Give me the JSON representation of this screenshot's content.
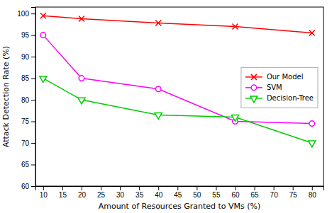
{
  "chart_data": {
    "type": "line",
    "x": [
      10,
      20,
      40,
      60,
      80
    ],
    "series": [
      {
        "name": "Our Model",
        "color": "#ff0000",
        "marker": "x",
        "values": [
          99.5,
          98.8,
          97.8,
          97.0,
          95.5
        ]
      },
      {
        "name": "SVM",
        "color": "#ff00ff",
        "marker": "circle",
        "values": [
          95.0,
          85.0,
          82.5,
          75.0,
          74.5
        ]
      },
      {
        "name": "Decision-Tree",
        "color": "#00cc00",
        "marker": "triangle-down",
        "values": [
          85.0,
          80.0,
          76.5,
          76.0,
          70.0
        ]
      }
    ],
    "xlabel": "Amount of Resources Granted to VMs (%)",
    "ylabel": "Attack Detection Rate (%)",
    "xlim": [
      8,
      83
    ],
    "ylim": [
      60,
      101.5
    ],
    "xticks": [
      10,
      15,
      20,
      25,
      30,
      35,
      40,
      45,
      50,
      55,
      60,
      65,
      70,
      75,
      80
    ],
    "yticks": [
      60,
      65,
      70,
      75,
      80,
      85,
      90,
      95,
      100
    ],
    "legend": "center right",
    "grid": false
  }
}
